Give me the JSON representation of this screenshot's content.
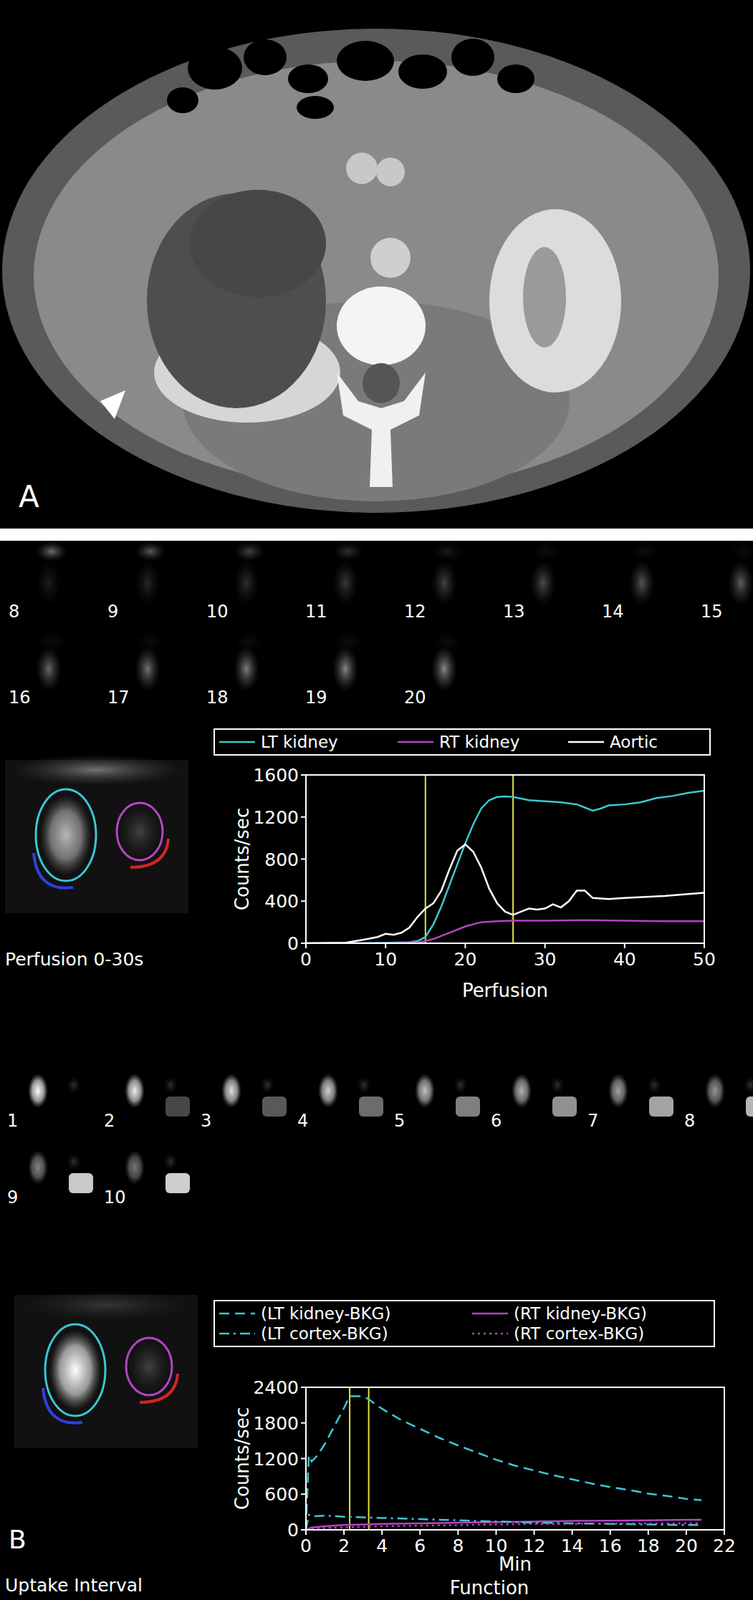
{
  "figure": {
    "panel_labels": [
      "A",
      "B"
    ],
    "perfusion_frames": [
      8,
      9,
      10,
      11,
      12,
      13,
      14,
      15,
      16,
      17,
      18,
      19,
      20
    ],
    "function_frames": [
      1,
      2,
      3,
      4,
      5,
      6,
      7,
      8,
      9,
      10
    ],
    "captions": [
      "Perfusion 0-30s",
      "Uptake Interval"
    ]
  },
  "chart_data": [
    {
      "type": "line",
      "x_label": "Perfusion",
      "y_label": "Counts/sec",
      "xlim": [
        0,
        50
      ],
      "ylim": [
        0,
        1600
      ],
      "xticks": [
        0,
        10,
        20,
        30,
        40,
        50
      ],
      "yticks": [
        0,
        400,
        800,
        1200,
        1600
      ],
      "legend": "top",
      "markers": [
        15,
        26
      ],
      "series": [
        {
          "name": "LT kidney",
          "color": "#3cc8d2",
          "line_style": "solid",
          "x": [
            0,
            5,
            10,
            13,
            14,
            15,
            16,
            17,
            18,
            19,
            20,
            21,
            22,
            23,
            24,
            25,
            26,
            28,
            30,
            32,
            34,
            35,
            36,
            37,
            38,
            40,
            42,
            44,
            46,
            48,
            50
          ],
          "values": [
            0,
            0,
            5,
            10,
            20,
            60,
            180,
            350,
            550,
            750,
            950,
            1130,
            1280,
            1360,
            1390,
            1395,
            1390,
            1360,
            1350,
            1340,
            1320,
            1290,
            1260,
            1280,
            1310,
            1320,
            1340,
            1380,
            1400,
            1430,
            1450
          ]
        },
        {
          "name": "RT kidney",
          "color": "#b444c4",
          "line_style": "solid",
          "x": [
            0,
            10,
            14,
            16,
            18,
            20,
            22,
            24,
            26,
            30,
            35,
            40,
            45,
            50
          ],
          "values": [
            0,
            0,
            5,
            40,
            100,
            160,
            200,
            210,
            215,
            215,
            220,
            215,
            210,
            210
          ]
        },
        {
          "name": "Aortic",
          "color": "#ffffff",
          "line_style": "solid",
          "x": [
            0,
            5,
            7,
            9,
            10,
            11,
            12,
            13,
            14,
            15,
            16,
            17,
            18,
            19,
            20,
            21,
            22,
            23,
            24,
            25,
            26,
            27,
            28,
            29,
            30,
            31,
            32,
            33,
            34,
            35,
            36,
            38,
            40,
            45,
            50
          ],
          "values": [
            0,
            5,
            30,
            60,
            90,
            80,
            100,
            150,
            250,
            330,
            380,
            500,
            700,
            880,
            940,
            870,
            720,
            520,
            380,
            300,
            270,
            300,
            330,
            320,
            330,
            370,
            340,
            400,
            500,
            500,
            430,
            420,
            430,
            450,
            480
          ]
        }
      ]
    },
    {
      "type": "line",
      "title": "Function",
      "x_label": "Min",
      "y_label": "Counts/sec",
      "xlim": [
        0,
        22
      ],
      "ylim": [
        0,
        2400
      ],
      "xticks": [
        0,
        2,
        4,
        6,
        8,
        10,
        12,
        14,
        16,
        18,
        20,
        22
      ],
      "yticks": [
        0,
        600,
        1200,
        1800,
        2400
      ],
      "legend": "top",
      "markers": [
        2.3,
        3.3
      ],
      "series": [
        {
          "name": "(LT kidney-BKG)",
          "color": "#3cc8d2",
          "line_style": "dashed",
          "x": [
            0,
            0.15,
            0.3,
            0.6,
            1,
            1.5,
            2,
            2.3,
            2.6,
            3,
            3.3,
            3.7,
            4.2,
            5,
            6,
            7,
            8,
            9,
            10,
            11,
            12,
            13,
            14,
            15,
            16,
            17,
            18,
            19,
            20,
            20.8
          ],
          "values": [
            0,
            1250,
            1150,
            1250,
            1450,
            1750,
            2050,
            2250,
            2250,
            2250,
            2200,
            2100,
            2000,
            1850,
            1700,
            1550,
            1420,
            1300,
            1180,
            1080,
            1000,
            920,
            850,
            780,
            720,
            670,
            610,
            570,
            520,
            500
          ]
        },
        {
          "name": "(RT kidney-BKG)",
          "color": "#b444c4",
          "line_style": "solid",
          "x": [
            0,
            0.3,
            1,
            2,
            4,
            6,
            8,
            10,
            12,
            14,
            16,
            18,
            20,
            20.8
          ],
          "values": [
            0,
            40,
            60,
            80,
            100,
            110,
            120,
            130,
            140,
            150,
            155,
            160,
            170,
            170
          ]
        },
        {
          "name": "(LT cortex-BKG)",
          "color": "#3cc8d2",
          "line_style": "dashdot",
          "x": [
            0,
            0.15,
            0.5,
            1,
            2,
            4,
            6,
            8,
            10,
            12,
            14,
            16,
            18,
            20,
            20.8
          ],
          "values": [
            0,
            250,
            230,
            240,
            220,
            200,
            180,
            160,
            140,
            120,
            110,
            100,
            90,
            80,
            80
          ]
        },
        {
          "name": "(RT cortex-BKG)",
          "color": "#b444c4",
          "line_style": "dotted",
          "x": [
            0,
            0.3,
            1,
            2,
            4,
            6,
            8,
            10,
            12,
            14,
            16,
            18,
            20,
            20.8
          ],
          "values": [
            0,
            20,
            30,
            40,
            60,
            70,
            80,
            90,
            100,
            100,
            105,
            110,
            110,
            110
          ]
        }
      ]
    }
  ]
}
